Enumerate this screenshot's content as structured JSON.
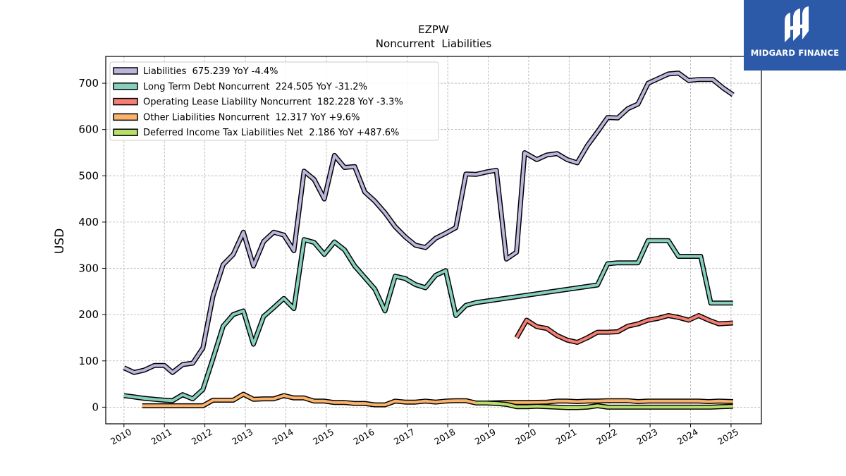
{
  "brand": {
    "name": "MIDGARD FINANCE",
    "color": "#2c5aa8"
  },
  "chart_data": {
    "type": "line",
    "title": "EZPW",
    "subtitle": "Noncurrent  Liabilities",
    "xlabel": "",
    "ylabel": "USD",
    "xlim": [
      2009.55,
      2025.75
    ],
    "ylim": [
      -36,
      758
    ],
    "x_ticks": [
      "2010",
      "2011",
      "2012",
      "2013",
      "2014",
      "2015",
      "2016",
      "2017",
      "2018",
      "2019",
      "2020",
      "2021",
      "2022",
      "2023",
      "2024",
      "2025"
    ],
    "y_ticks": [
      "0",
      "100",
      "200",
      "300",
      "400",
      "500",
      "600",
      "700"
    ],
    "grid": true,
    "legend_position": "top-left",
    "series": [
      {
        "name": "Liabilities  675.239 YoY -4.4%",
        "color": "#bcb6dc",
        "points": [
          [
            2010.0,
            85
          ],
          [
            2010.25,
            75
          ],
          [
            2010.5,
            80
          ],
          [
            2010.75,
            90
          ],
          [
            2011.0,
            90
          ],
          [
            2011.2,
            75
          ],
          [
            2011.45,
            92
          ],
          [
            2011.7,
            95
          ],
          [
            2011.95,
            128
          ],
          [
            2012.2,
            240
          ],
          [
            2012.45,
            308
          ],
          [
            2012.7,
            330
          ],
          [
            2012.95,
            378
          ],
          [
            2013.2,
            305
          ],
          [
            2013.45,
            358
          ],
          [
            2013.7,
            378
          ],
          [
            2013.95,
            372
          ],
          [
            2014.2,
            338
          ],
          [
            2014.45,
            510
          ],
          [
            2014.7,
            492
          ],
          [
            2014.95,
            450
          ],
          [
            2015.2,
            544
          ],
          [
            2015.45,
            518
          ],
          [
            2015.7,
            520
          ],
          [
            2015.95,
            465
          ],
          [
            2016.2,
            445
          ],
          [
            2016.45,
            420
          ],
          [
            2016.7,
            390
          ],
          [
            2016.95,
            368
          ],
          [
            2017.2,
            350
          ],
          [
            2017.45,
            345
          ],
          [
            2017.7,
            365
          ],
          [
            2017.95,
            376
          ],
          [
            2018.2,
            388
          ],
          [
            2018.45,
            504
          ],
          [
            2018.7,
            503
          ],
          [
            2018.95,
            508
          ],
          [
            2019.2,
            512
          ],
          [
            2019.45,
            320
          ],
          [
            2019.7,
            335
          ],
          [
            2019.9,
            550
          ],
          [
            2020.2,
            535
          ],
          [
            2020.45,
            545
          ],
          [
            2020.7,
            548
          ],
          [
            2020.95,
            535
          ],
          [
            2021.2,
            528
          ],
          [
            2021.45,
            565
          ],
          [
            2021.7,
            595
          ],
          [
            2021.95,
            626
          ],
          [
            2022.2,
            625
          ],
          [
            2022.45,
            645
          ],
          [
            2022.7,
            655
          ],
          [
            2022.95,
            700
          ],
          [
            2023.2,
            710
          ],
          [
            2023.45,
            720
          ],
          [
            2023.7,
            722
          ],
          [
            2023.95,
            706
          ],
          [
            2024.2,
            708
          ],
          [
            2024.55,
            708
          ],
          [
            2024.8,
            690
          ],
          [
            2025.05,
            675
          ]
        ]
      },
      {
        "name": "Long Term Debt Noncurrent  224.505 YoY -31.2%",
        "color": "#86cfbd",
        "points": [
          [
            2010.0,
            25
          ],
          [
            2010.25,
            22
          ],
          [
            2010.5,
            19
          ],
          [
            2010.75,
            17
          ],
          [
            2011.0,
            15
          ],
          [
            2011.2,
            14
          ],
          [
            2011.45,
            27
          ],
          [
            2011.7,
            18
          ],
          [
            2011.95,
            38
          ],
          [
            2012.2,
            105
          ],
          [
            2012.45,
            175
          ],
          [
            2012.7,
            200
          ],
          [
            2012.95,
            208
          ],
          [
            2013.2,
            136
          ],
          [
            2013.45,
            196
          ],
          [
            2013.7,
            215
          ],
          [
            2013.95,
            235
          ],
          [
            2014.2,
            213
          ],
          [
            2014.45,
            362
          ],
          [
            2014.7,
            356
          ],
          [
            2014.95,
            330
          ],
          [
            2015.2,
            357
          ],
          [
            2015.45,
            340
          ],
          [
            2015.7,
            305
          ],
          [
            2015.95,
            280
          ],
          [
            2016.2,
            255
          ],
          [
            2016.45,
            208
          ],
          [
            2016.7,
            283
          ],
          [
            2016.95,
            278
          ],
          [
            2017.2,
            265
          ],
          [
            2017.45,
            258
          ],
          [
            2017.7,
            285
          ],
          [
            2017.95,
            295
          ],
          [
            2018.2,
            198
          ],
          [
            2018.45,
            220
          ],
          [
            2018.7,
            226
          ],
          [
            2021.7,
            264
          ],
          [
            2021.95,
            310
          ],
          [
            2022.2,
            312
          ],
          [
            2022.7,
            312
          ],
          [
            2022.95,
            360
          ],
          [
            2023.2,
            360
          ],
          [
            2023.45,
            360
          ],
          [
            2023.7,
            326
          ],
          [
            2023.95,
            326
          ],
          [
            2024.25,
            326
          ],
          [
            2024.5,
            225
          ],
          [
            2025.05,
            225
          ]
        ]
      },
      {
        "name": "Operating Lease Liability Noncurrent  182.228 YoY -3.3%",
        "color": "#f47f72",
        "points": [
          [
            2019.7,
            150
          ],
          [
            2019.95,
            188
          ],
          [
            2020.2,
            174
          ],
          [
            2020.45,
            170
          ],
          [
            2020.7,
            155
          ],
          [
            2020.95,
            145
          ],
          [
            2021.2,
            140
          ],
          [
            2021.45,
            150
          ],
          [
            2021.7,
            162
          ],
          [
            2021.95,
            162
          ],
          [
            2022.2,
            163
          ],
          [
            2022.45,
            175
          ],
          [
            2022.7,
            180
          ],
          [
            2022.95,
            188
          ],
          [
            2023.2,
            192
          ],
          [
            2023.45,
            198
          ],
          [
            2023.7,
            194
          ],
          [
            2023.95,
            188
          ],
          [
            2024.2,
            198
          ],
          [
            2024.45,
            188
          ],
          [
            2024.7,
            180
          ],
          [
            2025.05,
            182
          ]
        ]
      },
      {
        "name": "Other Liabilities Noncurrent  12.317 YoY +9.6%",
        "color": "#fbb26a",
        "points": [
          [
            2010.45,
            3
          ],
          [
            2011.95,
            3
          ],
          [
            2012.2,
            15
          ],
          [
            2012.7,
            15
          ],
          [
            2012.95,
            28
          ],
          [
            2013.2,
            17
          ],
          [
            2013.45,
            18
          ],
          [
            2013.7,
            18
          ],
          [
            2013.95,
            25
          ],
          [
            2014.2,
            20
          ],
          [
            2014.45,
            20
          ],
          [
            2014.7,
            13
          ],
          [
            2014.95,
            13
          ],
          [
            2015.2,
            10
          ],
          [
            2015.45,
            10
          ],
          [
            2015.7,
            8
          ],
          [
            2015.95,
            8
          ],
          [
            2016.2,
            5
          ],
          [
            2016.45,
            5
          ],
          [
            2016.7,
            13
          ],
          [
            2016.95,
            11
          ],
          [
            2017.2,
            11
          ],
          [
            2017.45,
            13
          ],
          [
            2017.7,
            11
          ],
          [
            2017.95,
            13
          ],
          [
            2018.2,
            14
          ],
          [
            2018.45,
            14
          ],
          [
            2018.7,
            9
          ],
          [
            2019.0,
            9
          ],
          [
            2019.5,
            10
          ],
          [
            2020.0,
            10
          ],
          [
            2020.45,
            11
          ],
          [
            2020.7,
            13
          ],
          [
            2020.95,
            13
          ],
          [
            2021.2,
            12
          ],
          [
            2021.45,
            13
          ],
          [
            2021.7,
            13
          ],
          [
            2021.95,
            14
          ],
          [
            2022.2,
            14
          ],
          [
            2022.45,
            14
          ],
          [
            2022.7,
            12
          ],
          [
            2022.95,
            13
          ],
          [
            2023.2,
            13
          ],
          [
            2023.45,
            13
          ],
          [
            2023.7,
            13
          ],
          [
            2023.95,
            13
          ],
          [
            2024.2,
            13
          ],
          [
            2024.45,
            12
          ],
          [
            2024.7,
            13
          ],
          [
            2025.05,
            12
          ]
        ]
      },
      {
        "name": "Deferred Income Tax Liabilities Net  2.186 YoY +487.6%",
        "color": "#b8df6c",
        "points": [
          [
            2018.7,
            9
          ],
          [
            2018.95,
            9
          ],
          [
            2019.2,
            8
          ],
          [
            2019.45,
            6
          ],
          [
            2019.7,
            1
          ],
          [
            2019.95,
            1
          ],
          [
            2020.2,
            2
          ],
          [
            2020.45,
            1
          ],
          [
            2020.7,
            0
          ],
          [
            2020.95,
            -1
          ],
          [
            2021.2,
            -1
          ],
          [
            2021.45,
            0
          ],
          [
            2021.7,
            3
          ],
          [
            2021.95,
            0
          ],
          [
            2022.2,
            0
          ],
          [
            2022.45,
            0
          ],
          [
            2022.7,
            0
          ],
          [
            2022.95,
            0
          ],
          [
            2023.5,
            0
          ],
          [
            2024.0,
            0
          ],
          [
            2024.5,
            0
          ],
          [
            2024.75,
            1
          ],
          [
            2025.05,
            2
          ]
        ]
      }
    ]
  }
}
